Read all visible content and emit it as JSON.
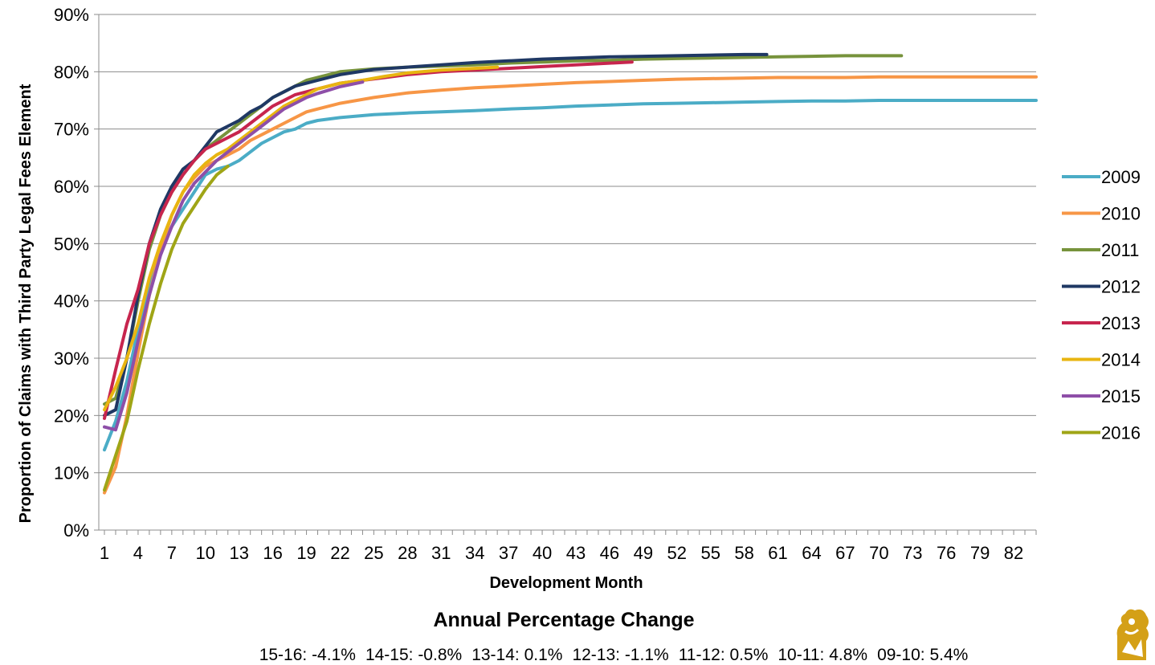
{
  "chart_data": {
    "type": "line",
    "title": "",
    "xlabel": "Development Month",
    "ylabel": "Proportion of Claims with Third Party Legal Fees Element",
    "ylim": [
      0,
      0.9
    ],
    "xlim": [
      1,
      84
    ],
    "y_ticks": [
      "0%",
      "10%",
      "20%",
      "30%",
      "40%",
      "50%",
      "60%",
      "70%",
      "80%",
      "90%"
    ],
    "x_ticks": [
      "1",
      "4",
      "7",
      "10",
      "13",
      "16",
      "19",
      "22",
      "25",
      "28",
      "31",
      "34",
      "37",
      "40",
      "43",
      "46",
      "49",
      "52",
      "55",
      "58",
      "61",
      "64",
      "67",
      "70",
      "73",
      "76",
      "79",
      "82"
    ],
    "grid": "horizontal",
    "legend_position": "right",
    "series": [
      {
        "name": "2009",
        "color": "#4BACC6",
        "points": [
          [
            1,
            0.14
          ],
          [
            2,
            0.19
          ],
          [
            3,
            0.26
          ],
          [
            4,
            0.35
          ],
          [
            5,
            0.43
          ],
          [
            6,
            0.49
          ],
          [
            7,
            0.53
          ],
          [
            8,
            0.56
          ],
          [
            9,
            0.59
          ],
          [
            10,
            0.62
          ],
          [
            11,
            0.63
          ],
          [
            12,
            0.635
          ],
          [
            13,
            0.645
          ],
          [
            14,
            0.66
          ],
          [
            15,
            0.675
          ],
          [
            16,
            0.685
          ],
          [
            17,
            0.695
          ],
          [
            18,
            0.7
          ],
          [
            19,
            0.71
          ],
          [
            20,
            0.715
          ],
          [
            22,
            0.72
          ],
          [
            25,
            0.725
          ],
          [
            28,
            0.728
          ],
          [
            31,
            0.73
          ],
          [
            34,
            0.732
          ],
          [
            37,
            0.735
          ],
          [
            40,
            0.737
          ],
          [
            43,
            0.74
          ],
          [
            46,
            0.742
          ],
          [
            49,
            0.744
          ],
          [
            52,
            0.745
          ],
          [
            55,
            0.746
          ],
          [
            58,
            0.747
          ],
          [
            61,
            0.748
          ],
          [
            64,
            0.749
          ],
          [
            67,
            0.749
          ],
          [
            70,
            0.75
          ],
          [
            73,
            0.75
          ],
          [
            76,
            0.75
          ],
          [
            79,
            0.75
          ],
          [
            84,
            0.75
          ]
        ]
      },
      {
        "name": "2010",
        "color": "#F79646",
        "points": [
          [
            1,
            0.065
          ],
          [
            2,
            0.11
          ],
          [
            3,
            0.2
          ],
          [
            4,
            0.31
          ],
          [
            5,
            0.41
          ],
          [
            6,
            0.49
          ],
          [
            7,
            0.55
          ],
          [
            8,
            0.59
          ],
          [
            9,
            0.615
          ],
          [
            10,
            0.635
          ],
          [
            11,
            0.645
          ],
          [
            12,
            0.655
          ],
          [
            13,
            0.665
          ],
          [
            14,
            0.68
          ],
          [
            15,
            0.69
          ],
          [
            16,
            0.7
          ],
          [
            17,
            0.71
          ],
          [
            18,
            0.72
          ],
          [
            19,
            0.73
          ],
          [
            20,
            0.735
          ],
          [
            22,
            0.745
          ],
          [
            25,
            0.755
          ],
          [
            28,
            0.763
          ],
          [
            31,
            0.768
          ],
          [
            34,
            0.772
          ],
          [
            37,
            0.775
          ],
          [
            40,
            0.778
          ],
          [
            43,
            0.781
          ],
          [
            46,
            0.783
          ],
          [
            49,
            0.785
          ],
          [
            52,
            0.787
          ],
          [
            55,
            0.788
          ],
          [
            58,
            0.789
          ],
          [
            61,
            0.79
          ],
          [
            64,
            0.79
          ],
          [
            67,
            0.79
          ],
          [
            70,
            0.791
          ],
          [
            73,
            0.791
          ],
          [
            76,
            0.791
          ],
          [
            79,
            0.791
          ],
          [
            84,
            0.791
          ]
        ]
      },
      {
        "name": "2011",
        "color": "#77933C",
        "points": [
          [
            1,
            0.22
          ],
          [
            2,
            0.23
          ],
          [
            3,
            0.3
          ],
          [
            4,
            0.4
          ],
          [
            5,
            0.49
          ],
          [
            6,
            0.55
          ],
          [
            7,
            0.59
          ],
          [
            8,
            0.62
          ],
          [
            9,
            0.645
          ],
          [
            10,
            0.665
          ],
          [
            11,
            0.68
          ],
          [
            12,
            0.695
          ],
          [
            13,
            0.71
          ],
          [
            14,
            0.725
          ],
          [
            15,
            0.74
          ],
          [
            16,
            0.755
          ],
          [
            17,
            0.765
          ],
          [
            18,
            0.775
          ],
          [
            19,
            0.785
          ],
          [
            20,
            0.79
          ],
          [
            22,
            0.8
          ],
          [
            25,
            0.805
          ],
          [
            28,
            0.808
          ],
          [
            31,
            0.81
          ],
          [
            34,
            0.812
          ],
          [
            37,
            0.815
          ],
          [
            40,
            0.817
          ],
          [
            43,
            0.819
          ],
          [
            46,
            0.82
          ],
          [
            49,
            0.822
          ],
          [
            52,
            0.823
          ],
          [
            55,
            0.824
          ],
          [
            58,
            0.825
          ],
          [
            61,
            0.826
          ],
          [
            64,
            0.827
          ],
          [
            67,
            0.828
          ],
          [
            70,
            0.828
          ],
          [
            72,
            0.828
          ]
        ]
      },
      {
        "name": "2012",
        "color": "#1F3864",
        "points": [
          [
            1,
            0.2
          ],
          [
            2,
            0.21
          ],
          [
            3,
            0.3
          ],
          [
            4,
            0.41
          ],
          [
            5,
            0.5
          ],
          [
            6,
            0.56
          ],
          [
            7,
            0.6
          ],
          [
            8,
            0.63
          ],
          [
            9,
            0.645
          ],
          [
            10,
            0.67
          ],
          [
            11,
            0.695
          ],
          [
            12,
            0.705
          ],
          [
            13,
            0.715
          ],
          [
            14,
            0.73
          ],
          [
            15,
            0.74
          ],
          [
            16,
            0.755
          ],
          [
            17,
            0.765
          ],
          [
            18,
            0.775
          ],
          [
            19,
            0.78
          ],
          [
            20,
            0.785
          ],
          [
            22,
            0.795
          ],
          [
            25,
            0.804
          ],
          [
            28,
            0.808
          ],
          [
            31,
            0.812
          ],
          [
            34,
            0.816
          ],
          [
            37,
            0.819
          ],
          [
            40,
            0.822
          ],
          [
            43,
            0.824
          ],
          [
            46,
            0.826
          ],
          [
            49,
            0.827
          ],
          [
            52,
            0.828
          ],
          [
            55,
            0.829
          ],
          [
            58,
            0.83
          ],
          [
            60,
            0.83
          ]
        ]
      },
      {
        "name": "2013",
        "color": "#C7254E",
        "points": [
          [
            1,
            0.195
          ],
          [
            2,
            0.28
          ],
          [
            3,
            0.36
          ],
          [
            4,
            0.42
          ],
          [
            5,
            0.5
          ],
          [
            6,
            0.55
          ],
          [
            7,
            0.59
          ],
          [
            8,
            0.62
          ],
          [
            9,
            0.645
          ],
          [
            10,
            0.665
          ],
          [
            11,
            0.675
          ],
          [
            12,
            0.685
          ],
          [
            13,
            0.695
          ],
          [
            14,
            0.71
          ],
          [
            15,
            0.725
          ],
          [
            16,
            0.74
          ],
          [
            17,
            0.75
          ],
          [
            18,
            0.76
          ],
          [
            19,
            0.765
          ],
          [
            20,
            0.77
          ],
          [
            22,
            0.78
          ],
          [
            24,
            0.785
          ],
          [
            26,
            0.79
          ],
          [
            28,
            0.795
          ],
          [
            31,
            0.8
          ],
          [
            34,
            0.803
          ],
          [
            37,
            0.806
          ],
          [
            40,
            0.809
          ],
          [
            43,
            0.812
          ],
          [
            46,
            0.815
          ],
          [
            48,
            0.817
          ]
        ]
      },
      {
        "name": "2014",
        "color": "#E8B511",
        "points": [
          [
            1,
            0.21
          ],
          [
            2,
            0.25
          ],
          [
            3,
            0.3
          ],
          [
            4,
            0.36
          ],
          [
            5,
            0.44
          ],
          [
            6,
            0.5
          ],
          [
            7,
            0.55
          ],
          [
            8,
            0.59
          ],
          [
            9,
            0.62
          ],
          [
            10,
            0.64
          ],
          [
            11,
            0.655
          ],
          [
            12,
            0.665
          ],
          [
            13,
            0.68
          ],
          [
            14,
            0.695
          ],
          [
            15,
            0.71
          ],
          [
            16,
            0.725
          ],
          [
            17,
            0.74
          ],
          [
            18,
            0.75
          ],
          [
            19,
            0.76
          ],
          [
            20,
            0.77
          ],
          [
            22,
            0.78
          ],
          [
            24,
            0.785
          ],
          [
            26,
            0.792
          ],
          [
            28,
            0.798
          ],
          [
            31,
            0.803
          ],
          [
            34,
            0.806
          ],
          [
            36,
            0.808
          ]
        ]
      },
      {
        "name": "2015",
        "color": "#8E4FA8",
        "points": [
          [
            1,
            0.18
          ],
          [
            2,
            0.175
          ],
          [
            3,
            0.24
          ],
          [
            4,
            0.33
          ],
          [
            5,
            0.41
          ],
          [
            6,
            0.48
          ],
          [
            7,
            0.53
          ],
          [
            8,
            0.575
          ],
          [
            9,
            0.605
          ],
          [
            10,
            0.625
          ],
          [
            11,
            0.645
          ],
          [
            12,
            0.66
          ],
          [
            13,
            0.675
          ],
          [
            14,
            0.69
          ],
          [
            15,
            0.705
          ],
          [
            16,
            0.72
          ],
          [
            17,
            0.735
          ],
          [
            18,
            0.745
          ],
          [
            19,
            0.755
          ],
          [
            20,
            0.762
          ],
          [
            21,
            0.768
          ],
          [
            22,
            0.774
          ],
          [
            23,
            0.778
          ],
          [
            24,
            0.782
          ]
        ]
      },
      {
        "name": "2016",
        "color": "#9FA516",
        "points": [
          [
            1,
            0.07
          ],
          [
            2,
            0.13
          ],
          [
            3,
            0.19
          ],
          [
            4,
            0.28
          ],
          [
            5,
            0.36
          ],
          [
            6,
            0.43
          ],
          [
            7,
            0.49
          ],
          [
            8,
            0.535
          ],
          [
            9,
            0.565
          ],
          [
            10,
            0.595
          ],
          [
            11,
            0.62
          ],
          [
            12,
            0.635
          ]
        ]
      }
    ]
  },
  "annual_change": {
    "title": "Annual Percentage Change",
    "items": [
      "15-16: -4.1%",
      "14-15: -0.8%",
      "13-14: 0.1%",
      "12-13: -1.1%",
      "11-12: 0.5%",
      "10-11: 4.8%",
      "09-10: 5.4%"
    ]
  },
  "logo": {
    "icon": "lion-crest-icon",
    "color": "#D4A017"
  }
}
